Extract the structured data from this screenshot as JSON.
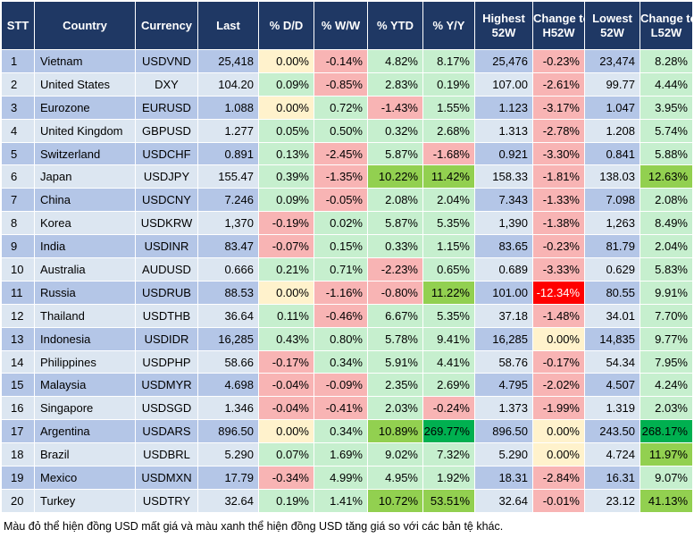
{
  "headers": [
    "STT",
    "Country",
    "Currency",
    "Last",
    "% D/D",
    "% W/W",
    "% YTD",
    "% Y/Y",
    "Highest 52W",
    "Change to H52W",
    "Lowest 52W",
    "Change to L52W"
  ],
  "rows": [
    [
      "1",
      "Vietnam",
      "USDVND",
      "25,418",
      "0.00%",
      "-0.14%",
      "4.82%",
      "8.17%",
      "25,476",
      "-0.23%",
      "23,474",
      "8.28%"
    ],
    [
      "2",
      "United States",
      "DXY",
      "104.20",
      "0.09%",
      "-0.85%",
      "2.83%",
      "0.19%",
      "107.00",
      "-2.61%",
      "99.77",
      "4.44%"
    ],
    [
      "3",
      "Eurozone",
      "EURUSD",
      "1.088",
      "0.00%",
      "0.72%",
      "-1.43%",
      "1.55%",
      "1.123",
      "-3.17%",
      "1.047",
      "3.95%"
    ],
    [
      "4",
      "United Kingdom",
      "GBPUSD",
      "1.277",
      "0.05%",
      "0.50%",
      "0.32%",
      "2.68%",
      "1.313",
      "-2.78%",
      "1.208",
      "5.74%"
    ],
    [
      "5",
      "Switzerland",
      "USDCHF",
      "0.891",
      "0.13%",
      "-2.45%",
      "5.87%",
      "-1.68%",
      "0.921",
      "-3.30%",
      "0.841",
      "5.88%"
    ],
    [
      "6",
      "Japan",
      "USDJPY",
      "155.47",
      "0.39%",
      "-1.35%",
      "10.22%",
      "11.42%",
      "158.33",
      "-1.81%",
      "138.03",
      "12.63%"
    ],
    [
      "7",
      "China",
      "USDCNY",
      "7.246",
      "0.09%",
      "-0.05%",
      "2.08%",
      "2.04%",
      "7.343",
      "-1.33%",
      "7.098",
      "2.08%"
    ],
    [
      "8",
      "Korea",
      "USDKRW",
      "1,370",
      "-0.19%",
      "0.02%",
      "5.87%",
      "5.35%",
      "1,390",
      "-1.38%",
      "1,263",
      "8.49%"
    ],
    [
      "9",
      "India",
      "USDINR",
      "83.47",
      "-0.07%",
      "0.15%",
      "0.33%",
      "1.15%",
      "83.65",
      "-0.23%",
      "81.79",
      "2.04%"
    ],
    [
      "10",
      "Australia",
      "AUDUSD",
      "0.666",
      "0.21%",
      "0.71%",
      "-2.23%",
      "0.65%",
      "0.689",
      "-3.33%",
      "0.629",
      "5.83%"
    ],
    [
      "11",
      "Russia",
      "USDRUB",
      "88.53",
      "0.00%",
      "-1.16%",
      "-0.80%",
      "11.22%",
      "101.00",
      "-12.34%",
      "80.55",
      "9.91%"
    ],
    [
      "12",
      "Thailand",
      "USDTHB",
      "36.64",
      "0.11%",
      "-0.46%",
      "6.67%",
      "5.35%",
      "37.18",
      "-1.48%",
      "34.01",
      "7.70%"
    ],
    [
      "13",
      "Indonesia",
      "USDIDR",
      "16,285",
      "0.43%",
      "0.80%",
      "5.78%",
      "9.41%",
      "16,285",
      "0.00%",
      "14,835",
      "9.77%"
    ],
    [
      "14",
      "Philippines",
      "USDPHP",
      "58.66",
      "-0.17%",
      "0.34%",
      "5.91%",
      "4.41%",
      "58.76",
      "-0.17%",
      "54.34",
      "7.95%"
    ],
    [
      "15",
      "Malaysia",
      "USDMYR",
      "4.698",
      "-0.04%",
      "-0.09%",
      "2.35%",
      "2.69%",
      "4.795",
      "-2.02%",
      "4.507",
      "4.24%"
    ],
    [
      "16",
      "Singapore",
      "USDSGD",
      "1.346",
      "-0.04%",
      "-0.41%",
      "2.03%",
      "-0.24%",
      "1.373",
      "-1.99%",
      "1.319",
      "2.03%"
    ],
    [
      "17",
      "Argentina",
      "USDARS",
      "896.50",
      "0.00%",
      "0.34%",
      "10.89%",
      "269.77%",
      "896.50",
      "0.00%",
      "243.50",
      "268.17%"
    ],
    [
      "18",
      "Brazil",
      "USDBRL",
      "5.290",
      "0.07%",
      "1.69%",
      "9.02%",
      "7.32%",
      "5.290",
      "0.00%",
      "4.724",
      "11.97%"
    ],
    [
      "19",
      "Mexico",
      "USDMXN",
      "17.79",
      "-0.34%",
      "4.99%",
      "4.95%",
      "1.92%",
      "18.31",
      "-2.84%",
      "16.31",
      "9.07%"
    ],
    [
      "20",
      "Turkey",
      "USDTRY",
      "32.64",
      "0.19%",
      "1.41%",
      "10.72%",
      "53.51%",
      "32.64",
      "-0.01%",
      "23.12",
      "41.13%"
    ]
  ],
  "note": "Màu đỏ thể hiện đồng USD mất giá và màu xanh thể hiện đồng USD tăng giá so với các bản tệ khác.",
  "colors": {
    "header_bg": "#1f3864",
    "row_odd": "#b4c6e7",
    "row_even": "#dce6f1",
    "neutral": "#fff2cc",
    "red_light": "#f8b4b4",
    "red_strong": "#ff0000",
    "green_light": "#c6efce",
    "green_mid": "#92d050",
    "green_strong": "#00b050"
  }
}
